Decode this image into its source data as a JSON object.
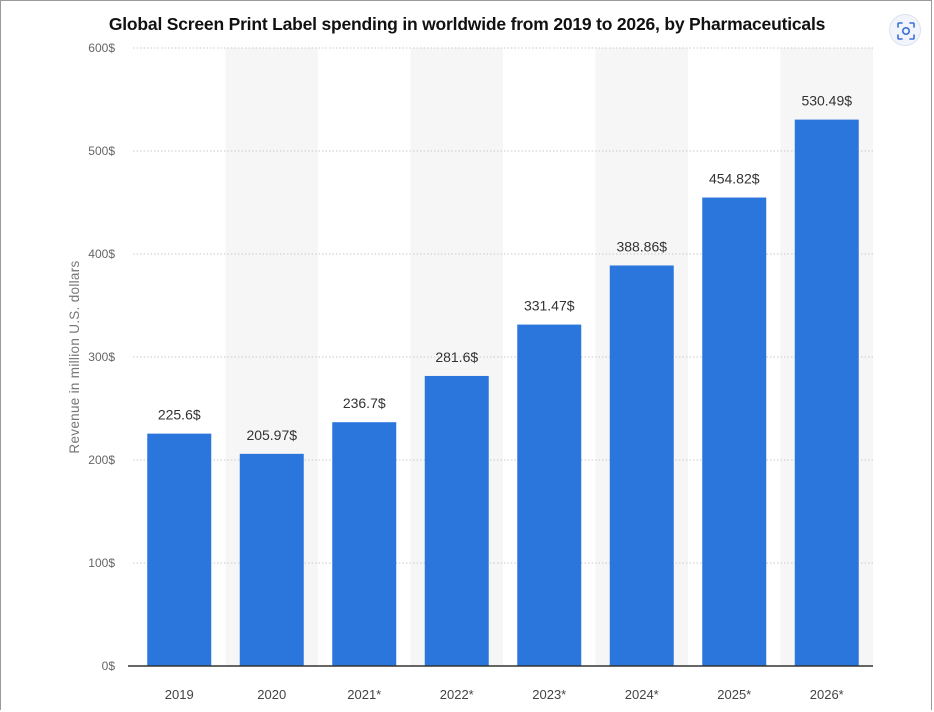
{
  "chart_data": {
    "type": "bar",
    "title": "Global Screen Print Label spending in worldwide from 2019 to 2026, by Pharmaceuticals",
    "xlabel": "",
    "ylabel": "Revenue in million U.S. dollars",
    "categories": [
      "2019",
      "2020",
      "2021*",
      "2022*",
      "2023*",
      "2024*",
      "2025*",
      "2026*"
    ],
    "values": [
      225.6,
      205.97,
      236.7,
      281.6,
      331.47,
      388.86,
      454.82,
      530.49
    ],
    "value_labels": [
      "225.6$",
      "205.97$",
      "236.7$",
      "281.6$",
      "331.47$",
      "388.86$",
      "454.82$",
      "530.49$"
    ],
    "ylim": [
      0,
      600
    ],
    "yticks": [
      0,
      100,
      200,
      300,
      400,
      500,
      600
    ],
    "ytick_labels": [
      "0$",
      "100$",
      "200$",
      "300$",
      "400$",
      "500$",
      "600$"
    ],
    "grid": true,
    "legend": "none",
    "bar_color": "#2a76dd"
  },
  "toolbar": {
    "scan_icon": "scan-icon"
  }
}
